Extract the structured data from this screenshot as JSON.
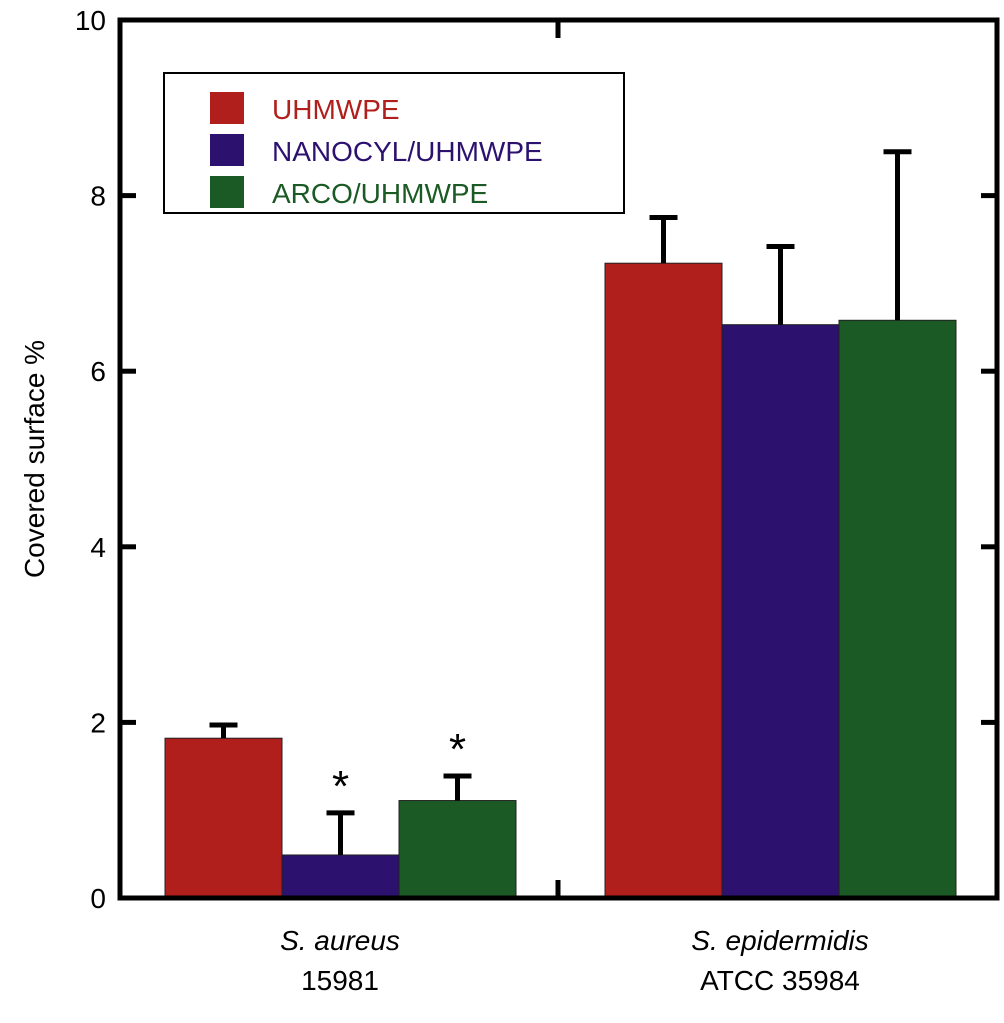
{
  "chart_data": {
    "type": "bar",
    "title": "",
    "xlabel": "",
    "ylabel": "Covered surface %",
    "ylim": [
      0,
      10
    ],
    "yticks": [
      0,
      2,
      4,
      6,
      8,
      10
    ],
    "grid": false,
    "legend_position": "top-left",
    "categories": [
      {
        "name": "S. aureus",
        "sub": "15981"
      },
      {
        "name": "S. epidermidis",
        "sub": "ATCC 35984"
      }
    ],
    "series": [
      {
        "name": "UHMWPE",
        "color": "#b01f1c",
        "values": [
          1.82,
          7.23
        ],
        "errors": [
          0.15,
          0.52
        ],
        "marks": [
          "",
          ""
        ]
      },
      {
        "name": "NANOCYL/UHMWPE",
        "color": "#2c116f",
        "values": [
          0.49,
          6.53
        ],
        "errors": [
          0.48,
          0.89
        ],
        "marks": [
          "*",
          ""
        ]
      },
      {
        "name": "ARCO/UHMWPE",
        "color": "#1b5a24",
        "values": [
          1.11,
          6.58
        ],
        "errors": [
          0.28,
          1.92
        ],
        "marks": [
          "*",
          ""
        ]
      }
    ]
  }
}
